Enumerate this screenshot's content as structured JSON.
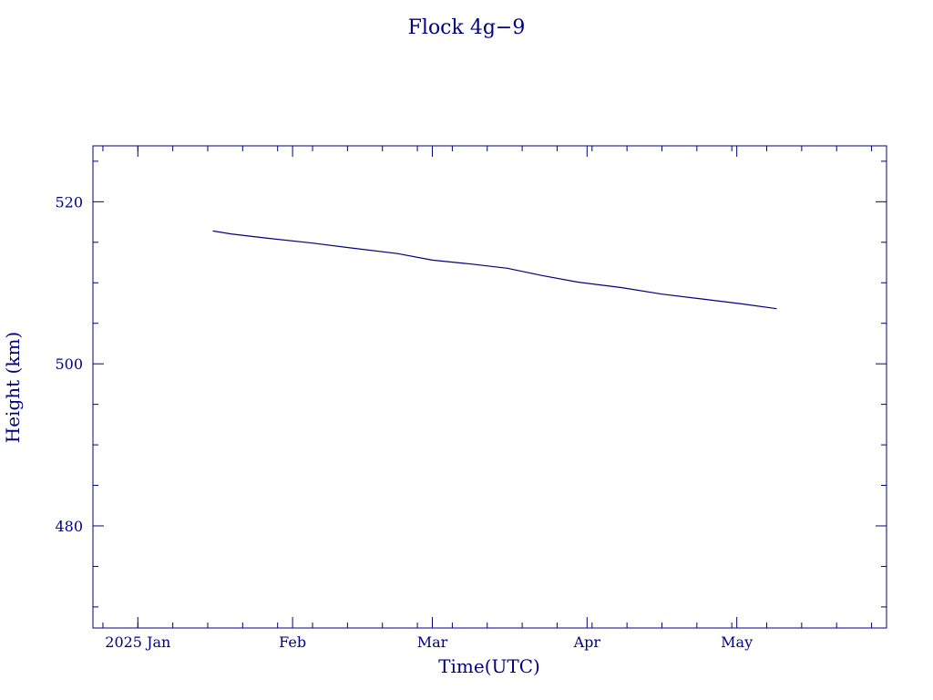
{
  "chart_data": {
    "type": "line",
    "title": "Flock 4g−9",
    "xlabel": "Time(UTC)",
    "ylabel": "Height (km)",
    "xlim": [
      "2024-12-23",
      "2025-05-31"
    ],
    "ylim": [
      467.4,
      526.9
    ],
    "x_ticks": [
      {
        "date": "2025-01-01",
        "label": "2025 Jan"
      },
      {
        "date": "2025-02-01",
        "label": "Feb"
      },
      {
        "date": "2025-03-01",
        "label": "Mar"
      },
      {
        "date": "2025-04-01",
        "label": "Apr"
      },
      {
        "date": "2025-05-01",
        "label": "May"
      }
    ],
    "y_ticks": [
      {
        "value": 480,
        "label": "480"
      },
      {
        "value": 500,
        "label": "500"
      },
      {
        "value": 520,
        "label": "520"
      }
    ],
    "grid": false,
    "series": [
      {
        "color": "#00007f",
        "points": [
          {
            "x": "2025-01-16",
            "y": 516.4
          },
          {
            "x": "2025-01-20",
            "y": 516.0
          },
          {
            "x": "2025-01-27",
            "y": 515.5
          },
          {
            "x": "2025-02-05",
            "y": 514.9
          },
          {
            "x": "2025-02-14",
            "y": 514.2
          },
          {
            "x": "2025-02-22",
            "y": 513.6
          },
          {
            "x": "2025-03-01",
            "y": 512.8
          },
          {
            "x": "2025-03-09",
            "y": 512.3
          },
          {
            "x": "2025-03-16",
            "y": 511.8
          },
          {
            "x": "2025-03-23",
            "y": 510.9
          },
          {
            "x": "2025-03-30",
            "y": 510.1
          },
          {
            "x": "2025-04-08",
            "y": 509.4
          },
          {
            "x": "2025-04-16",
            "y": 508.6
          },
          {
            "x": "2025-04-24",
            "y": 508.0
          },
          {
            "x": "2025-05-02",
            "y": 507.4
          },
          {
            "x": "2025-05-09",
            "y": 506.8
          }
        ]
      }
    ]
  }
}
